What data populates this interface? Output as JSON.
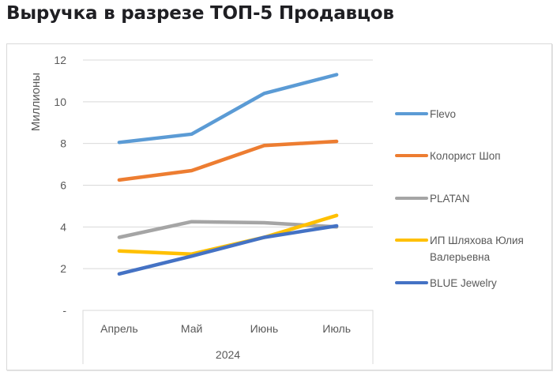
{
  "chart_data": {
    "type": "line",
    "title": "Выручка в разрезе ТОП-5 Продавцов",
    "ylabel": "Миллионы",
    "xlabel": "2024",
    "x_group_label": "2024",
    "categories": [
      "Апрель",
      "Май",
      "Июнь",
      "Июль"
    ],
    "ylim": [
      0,
      12
    ],
    "yticks": [
      0,
      2,
      4,
      6,
      8,
      10,
      12
    ],
    "ytick_labels": [
      "-",
      "2",
      "4",
      "6",
      "8",
      "10",
      "12"
    ],
    "grid": true,
    "legend_position": "right",
    "series": [
      {
        "name": "Flevo",
        "color": "#5B9BD5",
        "values": [
          8.05,
          8.45,
          10.4,
          11.3
        ]
      },
      {
        "name": "Колорист Шоп",
        "color": "#ED7D31",
        "values": [
          6.25,
          6.7,
          7.9,
          8.1
        ]
      },
      {
        "name": "PLATAN",
        "color": "#A5A5A5",
        "values": [
          3.5,
          4.25,
          4.2,
          4.0
        ]
      },
      {
        "name": "ИП Шляхова Юлия Валерьевна",
        "legend_lines": [
          "ИП Шляхова Юлия",
          "Валерьевна"
        ],
        "color": "#FFC000",
        "values": [
          2.85,
          2.7,
          3.5,
          4.55
        ]
      },
      {
        "name": "BLUE Jewelry",
        "color": "#4472C4",
        "values": [
          1.75,
          2.6,
          3.5,
          4.05
        ]
      }
    ]
  }
}
